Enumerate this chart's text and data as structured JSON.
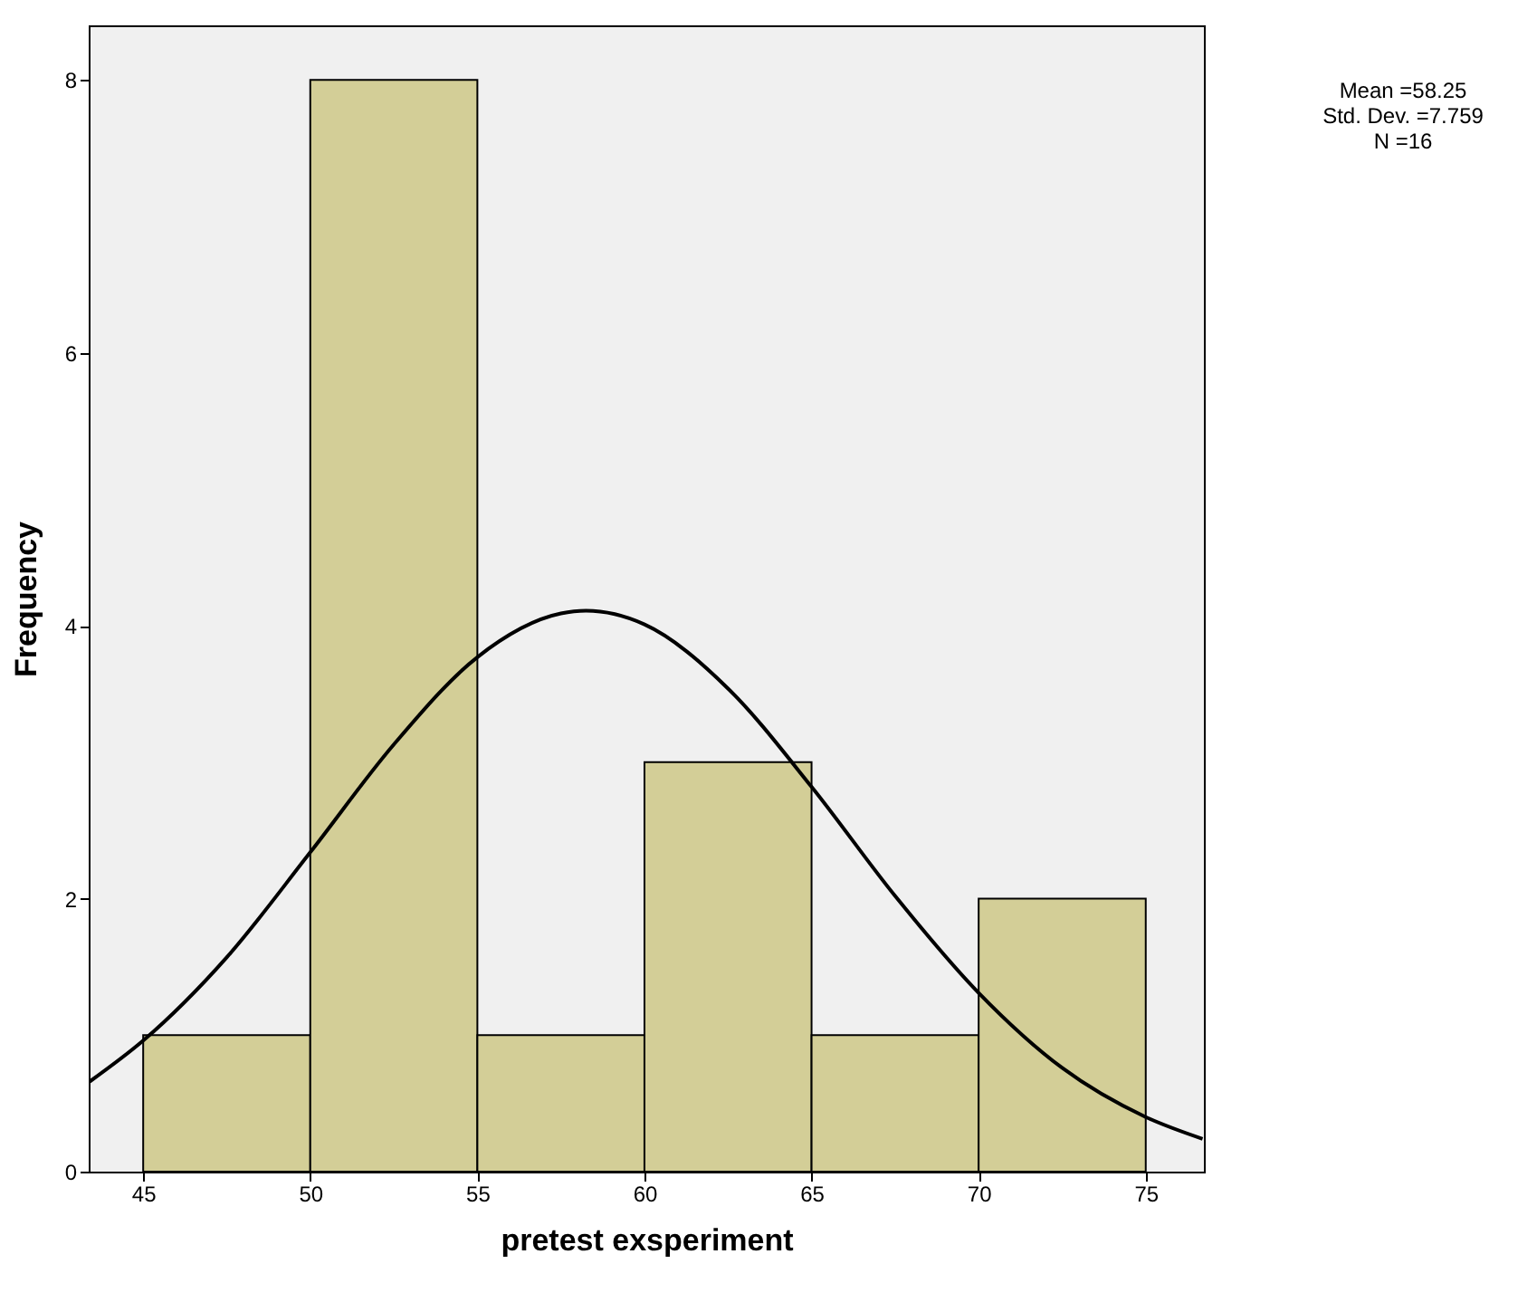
{
  "chart_data": {
    "type": "histogram",
    "xlabel": "pretest exsperiment",
    "ylabel": "Frequency",
    "bins": [
      45,
      50,
      55,
      60,
      65,
      70,
      75
    ],
    "series": [
      {
        "color": "#d3ce97",
        "values": [
          1,
          8,
          1,
          3,
          1,
          2
        ]
      },
      {
        "type": "line",
        "color": "#000000",
        "x": [
          43.4,
          45,
          47.5,
          50,
          52.5,
          55,
          57.5,
          58.25,
          60,
          62.5,
          65,
          67.5,
          70,
          72.5,
          75,
          76.7
        ],
        "values": [
          0.66,
          0.96,
          1.57,
          2.34,
          3.13,
          3.77,
          4.09,
          4.11,
          4.01,
          3.54,
          2.82,
          2.02,
          1.31,
          0.76,
          0.4,
          0.24
        ]
      }
    ],
    "xlim": [
      43.37,
      76.74
    ],
    "xticks": [
      45,
      50,
      55,
      60,
      65,
      70,
      75
    ],
    "ylim": [
      0,
      8.4
    ],
    "yticks": [
      0,
      2,
      4,
      6,
      8
    ],
    "grid": false,
    "marker": "none",
    "line_style": "solid",
    "annotations": [
      "Mean =58.25",
      "Std. Dev. =7.759",
      "N =16"
    ]
  }
}
